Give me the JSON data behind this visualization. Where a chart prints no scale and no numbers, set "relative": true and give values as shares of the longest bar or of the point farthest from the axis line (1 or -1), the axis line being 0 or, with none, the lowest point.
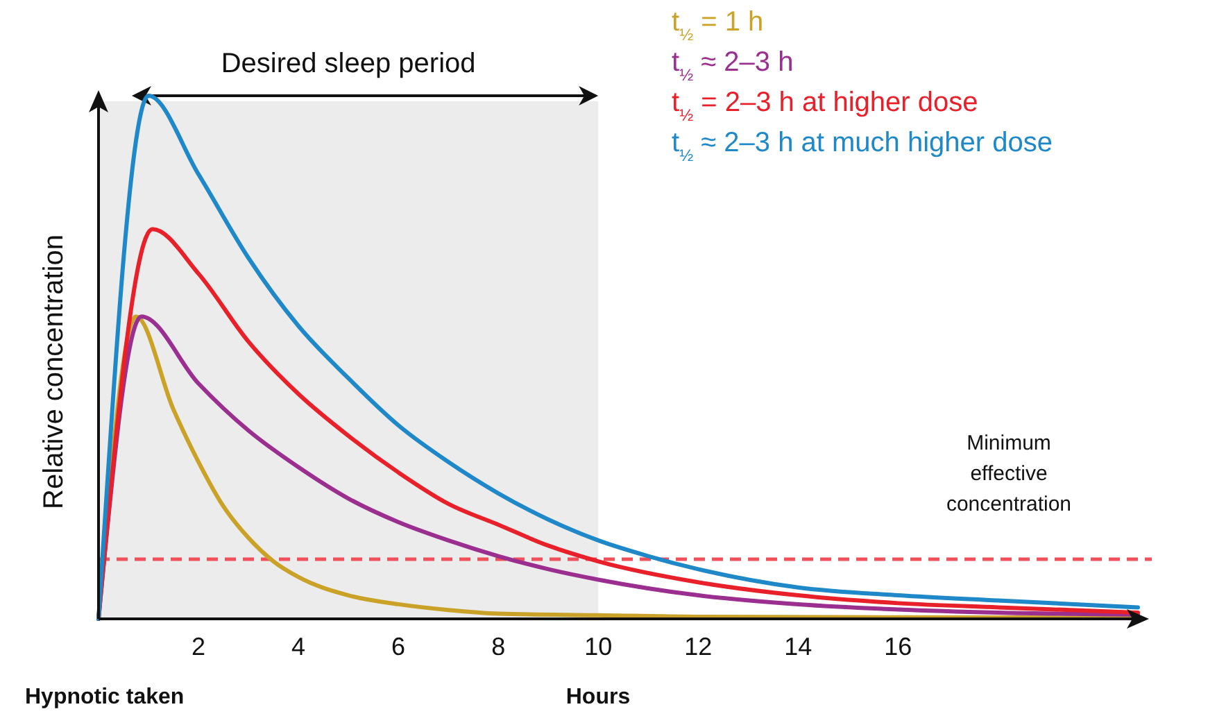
{
  "chart_data": {
    "type": "line",
    "relative": true,
    "xlabel": "Hours",
    "ylabel": "Relative concentration",
    "xlim": [
      0,
      20.8
    ],
    "xticks": [
      2,
      4,
      6,
      8,
      10,
      12,
      14,
      16
    ],
    "legend": "top right",
    "annotations": [
      "Hypnotic taken"
    ],
    "bands": [
      {
        "axis": "x",
        "from": 0,
        "to": 10,
        "label": "Desired sleep period",
        "color": "#ececec"
      }
    ],
    "ref_lines": [
      {
        "axis": "y",
        "value": 0.114,
        "label": "Minimum effective concentration",
        "color": "#f0505a",
        "line_style": "dashed"
      }
    ],
    "series": [
      {
        "name": "t$_{½}$ = 1 h",
        "color": "#c9a227",
        "x": [
          0,
          0.75,
          1.5,
          2,
          2.5,
          3,
          3.5,
          4,
          5,
          6,
          7,
          8,
          10,
          12,
          16,
          20.8
        ],
        "values": [
          0,
          0.578,
          0.4,
          0.3,
          0.215,
          0.155,
          0.11,
          0.08,
          0.045,
          0.028,
          0.017,
          0.01,
          0.007,
          0.004,
          0.003,
          0.002
        ]
      },
      {
        "name": "t$_{½}$ ≈ 2–3 h",
        "color": "#9b2f8f",
        "x": [
          0,
          0.86,
          2,
          3,
          4,
          5,
          6,
          7,
          8,
          9,
          10,
          12,
          14,
          16,
          18,
          20.8
        ],
        "values": [
          0,
          0.578,
          0.45,
          0.36,
          0.29,
          0.23,
          0.185,
          0.15,
          0.12,
          0.095,
          0.075,
          0.045,
          0.028,
          0.018,
          0.012,
          0.008
        ]
      },
      {
        "name": "t$_{½}$ = 2–3 h at higher dose",
        "color": "#e8202a",
        "x": [
          0,
          1.08,
          2,
          3,
          4,
          5,
          6,
          7,
          8,
          9,
          10,
          12,
          14,
          16,
          18,
          20.8
        ],
        "values": [
          0,
          0.745,
          0.66,
          0.53,
          0.43,
          0.35,
          0.28,
          0.22,
          0.18,
          0.14,
          0.11,
          0.07,
          0.045,
          0.03,
          0.022,
          0.012
        ]
      },
      {
        "name": "t$_{½}$ ≈ 2–3 h at much higher dose",
        "color": "#1e88c8",
        "x": [
          0,
          1,
          2,
          3,
          4,
          5,
          6,
          7,
          8,
          9,
          10,
          11,
          12,
          14,
          16,
          18,
          20.8
        ],
        "values": [
          0,
          1,
          0.85,
          0.69,
          0.56,
          0.46,
          0.37,
          0.3,
          0.24,
          0.19,
          0.15,
          0.12,
          0.095,
          0.06,
          0.045,
          0.035,
          0.022
        ]
      }
    ]
  }
}
